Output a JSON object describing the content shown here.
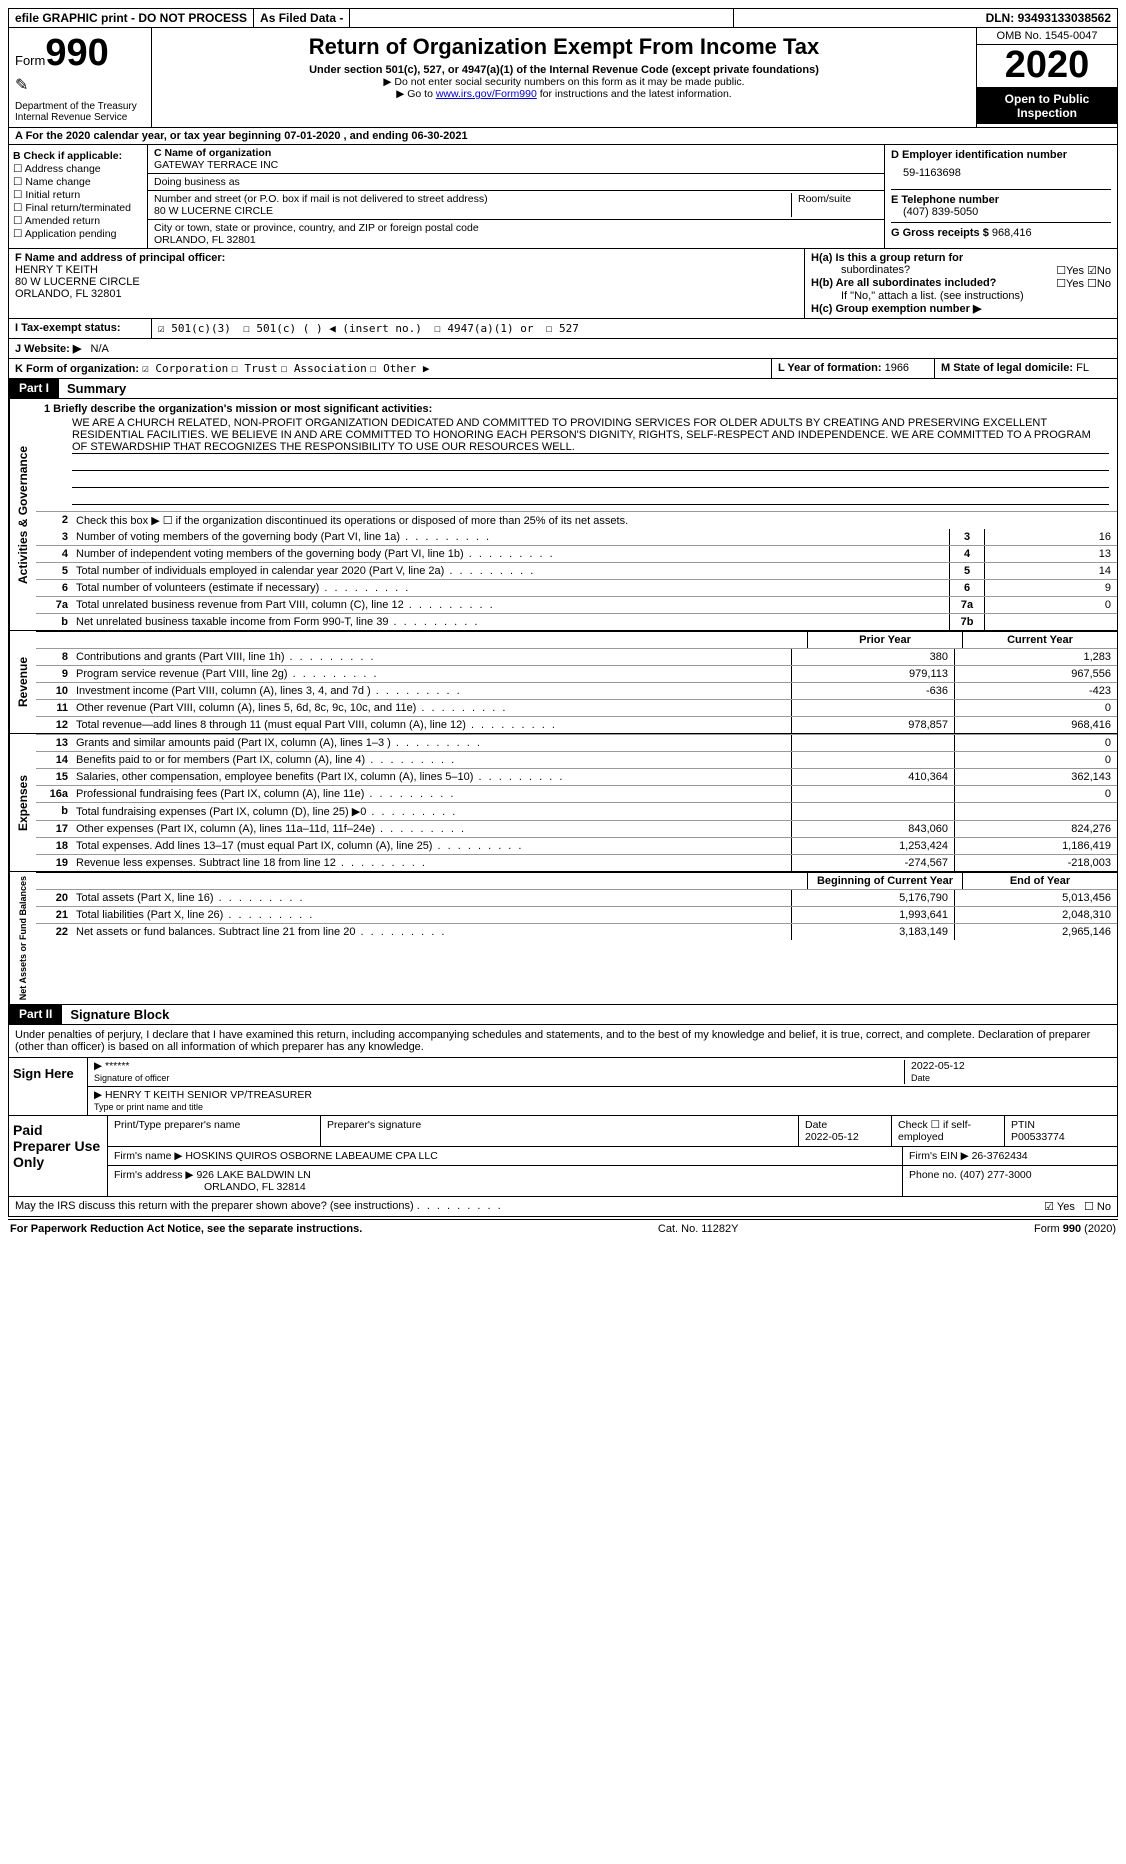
{
  "topbar": {
    "efile": "efile GRAPHIC print - DO NOT PROCESS",
    "asfiled": "As Filed Data -",
    "dln_label": "DLN:",
    "dln": "93493133038562"
  },
  "header": {
    "form_prefix": "Form",
    "form_no": "990",
    "dept1": "Department of the Treasury",
    "dept2": "Internal Revenue Service",
    "title": "Return of Organization Exempt From Income Tax",
    "subtitle": "Under section 501(c), 527, or 4947(a)(1) of the Internal Revenue Code (except private foundations)",
    "note1": "▶ Do not enter social security numbers on this form as it may be made public.",
    "note2_pre": "▶ Go to ",
    "note2_link": "www.irs.gov/Form990",
    "note2_post": " for instructions and the latest information.",
    "omb": "OMB No. 1545-0047",
    "year": "2020",
    "open1": "Open to Public",
    "open2": "Inspection"
  },
  "row_a": "A   For the 2020 calendar year, or tax year beginning 07-01-2020   , and ending 06-30-2021",
  "b": {
    "hdr": "B Check if applicable:",
    "opts": [
      "☐ Address change",
      "☐ Name change",
      "☐ Initial return",
      "☐ Final return/terminated",
      "☐ Amended return",
      "☐ Application pending"
    ]
  },
  "c": {
    "name_lbl": "C Name of organization",
    "name": "GATEWAY TERRACE INC",
    "dba_lbl": "Doing business as",
    "addr_lbl": "Number and street (or P.O. box if mail is not delivered to street address)",
    "room_lbl": "Room/suite",
    "addr": "80 W LUCERNE CIRCLE",
    "city_lbl": "City or town, state or province, country, and ZIP or foreign postal code",
    "city": "ORLANDO, FL  32801"
  },
  "d": {
    "lbl": "D Employer identification number",
    "val": "59-1163698"
  },
  "e": {
    "lbl": "E Telephone number",
    "val": "(407) 839-5050"
  },
  "g": {
    "lbl": "G Gross receipts $",
    "val": "968,416"
  },
  "f": {
    "lbl": "F  Name and address of principal officer:",
    "n": "HENRY T KEITH",
    "a1": "80 W LUCERNE CIRCLE",
    "a2": "ORLANDO, FL  32801"
  },
  "h": {
    "a_lbl": "H(a)  Is this a group return for",
    "a_lbl2": "subordinates?",
    "a_yes": "☐Yes",
    "a_no": "☑No",
    "b_lbl": "H(b)  Are all subordinates included?",
    "b_yes": "☐Yes",
    "b_no": "☐No",
    "b_note": "If \"No,\" attach a list. (see instructions)",
    "c_lbl": "H(c)  Group exemption number ▶"
  },
  "i": {
    "lbl": "I  Tax-exempt status:",
    "o1": "☑  501(c)(3)",
    "o2": "☐  501(c) (  ) ◀ (insert no.)",
    "o3": "☐  4947(a)(1) or",
    "o4": "☐  527"
  },
  "j": {
    "lbl": "J  Website: ▶",
    "val": "N/A"
  },
  "k": {
    "lbl": "K Form of organization:",
    "o1": "☑ Corporation",
    "o2": "☐ Trust",
    "o3": "☐ Association",
    "o4": "☐ Other ▶"
  },
  "l": {
    "lbl": "L Year of formation:",
    "val": "1966"
  },
  "m": {
    "lbl": "M State of legal domicile:",
    "val": "FL"
  },
  "part1": {
    "tag": "Part I",
    "title": "Summary"
  },
  "mission": {
    "prompt": "1  Briefly describe the organization's mission or most significant activities:",
    "text": "WE ARE A CHURCH RELATED, NON-PROFIT ORGANIZATION DEDICATED AND COMMITTED TO PROVIDING SERVICES FOR OLDER ADULTS BY CREATING AND PRESERVING EXCELLENT RESIDENTIAL FACILITIES. WE BELIEVE IN AND ARE COMMITTED TO HONORING EACH PERSON'S DIGNITY, RIGHTS, SELF-RESPECT AND INDEPENDENCE. WE ARE COMMITTED TO A PROGRAM OF STEWARDSHIP THAT RECOGNIZES THE RESPONSIBILITY TO USE OUR RESOURCES WELL."
  },
  "line2_text": "Check this box ▶ ☐ if the organization discontinued its operations or disposed of more than 25% of its net assets.",
  "govlines": [
    {
      "n": "3",
      "d": "Number of voting members of the governing body (Part VI, line 1a)",
      "b": "3",
      "v": "16"
    },
    {
      "n": "4",
      "d": "Number of independent voting members of the governing body (Part VI, line 1b)",
      "b": "4",
      "v": "13"
    },
    {
      "n": "5",
      "d": "Total number of individuals employed in calendar year 2020 (Part V, line 2a)",
      "b": "5",
      "v": "14"
    },
    {
      "n": "6",
      "d": "Total number of volunteers (estimate if necessary)",
      "b": "6",
      "v": "9"
    },
    {
      "n": "7a",
      "d": "Total unrelated business revenue from Part VIII, column (C), line 12",
      "b": "7a",
      "v": "0"
    },
    {
      "n": "b",
      "d": "Net unrelated business taxable income from Form 990-T, line 39",
      "b": "7b",
      "v": ""
    }
  ],
  "colhdr": {
    "c1": "Prior Year",
    "c2": "Current Year"
  },
  "revenue": [
    {
      "n": "8",
      "d": "Contributions and grants (Part VIII, line 1h)",
      "v1": "380",
      "v2": "1,283"
    },
    {
      "n": "9",
      "d": "Program service revenue (Part VIII, line 2g)",
      "v1": "979,113",
      "v2": "967,556"
    },
    {
      "n": "10",
      "d": "Investment income (Part VIII, column (A), lines 3, 4, and 7d )",
      "v1": "-636",
      "v2": "-423"
    },
    {
      "n": "11",
      "d": "Other revenue (Part VIII, column (A), lines 5, 6d, 8c, 9c, 10c, and 11e)",
      "v1": "",
      "v2": "0"
    },
    {
      "n": "12",
      "d": "Total revenue—add lines 8 through 11 (must equal Part VIII, column (A), line 12)",
      "v1": "978,857",
      "v2": "968,416"
    }
  ],
  "expenses": [
    {
      "n": "13",
      "d": "Grants and similar amounts paid (Part IX, column (A), lines 1–3 )",
      "v1": "",
      "v2": "0"
    },
    {
      "n": "14",
      "d": "Benefits paid to or for members (Part IX, column (A), line 4)",
      "v1": "",
      "v2": "0"
    },
    {
      "n": "15",
      "d": "Salaries, other compensation, employee benefits (Part IX, column (A), lines 5–10)",
      "v1": "410,364",
      "v2": "362,143"
    },
    {
      "n": "16a",
      "d": "Professional fundraising fees (Part IX, column (A), line 11e)",
      "v1": "",
      "v2": "0"
    },
    {
      "n": "b",
      "d": "Total fundraising expenses (Part IX, column (D), line 25) ▶0",
      "v1": "",
      "v2": ""
    },
    {
      "n": "17",
      "d": "Other expenses (Part IX, column (A), lines 11a–11d, 11f–24e)",
      "v1": "843,060",
      "v2": "824,276"
    },
    {
      "n": "18",
      "d": "Total expenses. Add lines 13–17 (must equal Part IX, column (A), line 25)",
      "v1": "1,253,424",
      "v2": "1,186,419"
    },
    {
      "n": "19",
      "d": "Revenue less expenses. Subtract line 18 from line 12",
      "v1": "-274,567",
      "v2": "-218,003"
    }
  ],
  "colhdr2": {
    "c1": "Beginning of Current Year",
    "c2": "End of Year"
  },
  "netassets": [
    {
      "n": "20",
      "d": "Total assets (Part X, line 16)",
      "v1": "5,176,790",
      "v2": "5,013,456"
    },
    {
      "n": "21",
      "d": "Total liabilities (Part X, line 26)",
      "v1": "1,993,641",
      "v2": "2,048,310"
    },
    {
      "n": "22",
      "d": "Net assets or fund balances. Subtract line 21 from line 20",
      "v1": "3,183,149",
      "v2": "2,965,146"
    }
  ],
  "vlabels": {
    "gov": "Activities & Governance",
    "rev": "Revenue",
    "exp": "Expenses",
    "net": "Net Assets or Fund Balances"
  },
  "part2": {
    "tag": "Part II",
    "title": "Signature Block"
  },
  "perjury": "Under penalties of perjury, I declare that I have examined this return, including accompanying schedules and statements, and to the best of my knowledge and belief, it is true, correct, and complete. Declaration of preparer (other than officer) is based on all information of which preparer has any knowledge.",
  "sign": {
    "lbl": "Sign Here",
    "stars": "******",
    "sig_lbl": "Signature of officer",
    "date": "2022-05-12",
    "date_lbl": "Date",
    "name": "HENRY T KEITH SENIOR VP/TREASURER",
    "name_lbl": "Type or print name and title"
  },
  "prep": {
    "lbl": "Paid Preparer Use Only",
    "h1": "Print/Type preparer's name",
    "h2": "Preparer's signature",
    "h3": "Date",
    "h3v": "2022-05-12",
    "h4": "Check ☐ if self-employed",
    "h5": "PTIN",
    "h5v": "P00533774",
    "firm_lbl": "Firm's name    ▶",
    "firm": "HOSKINS QUIROS OSBORNE LABEAUME CPA LLC",
    "ein_lbl": "Firm's EIN ▶",
    "ein": "26-3762434",
    "addr_lbl": "Firm's address ▶",
    "addr1": "926 LAKE BALDWIN LN",
    "addr2": "ORLANDO, FL  32814",
    "phone_lbl": "Phone no.",
    "phone": "(407) 277-3000"
  },
  "discuss": {
    "q": "May the IRS discuss this return with the preparer shown above? (see instructions)",
    "yes": "☑ Yes",
    "no": "☐ No"
  },
  "footer": {
    "l": "For Paperwork Reduction Act Notice, see the separate instructions.",
    "c": "Cat. No. 11282Y",
    "r": "Form 990 (2020)"
  }
}
